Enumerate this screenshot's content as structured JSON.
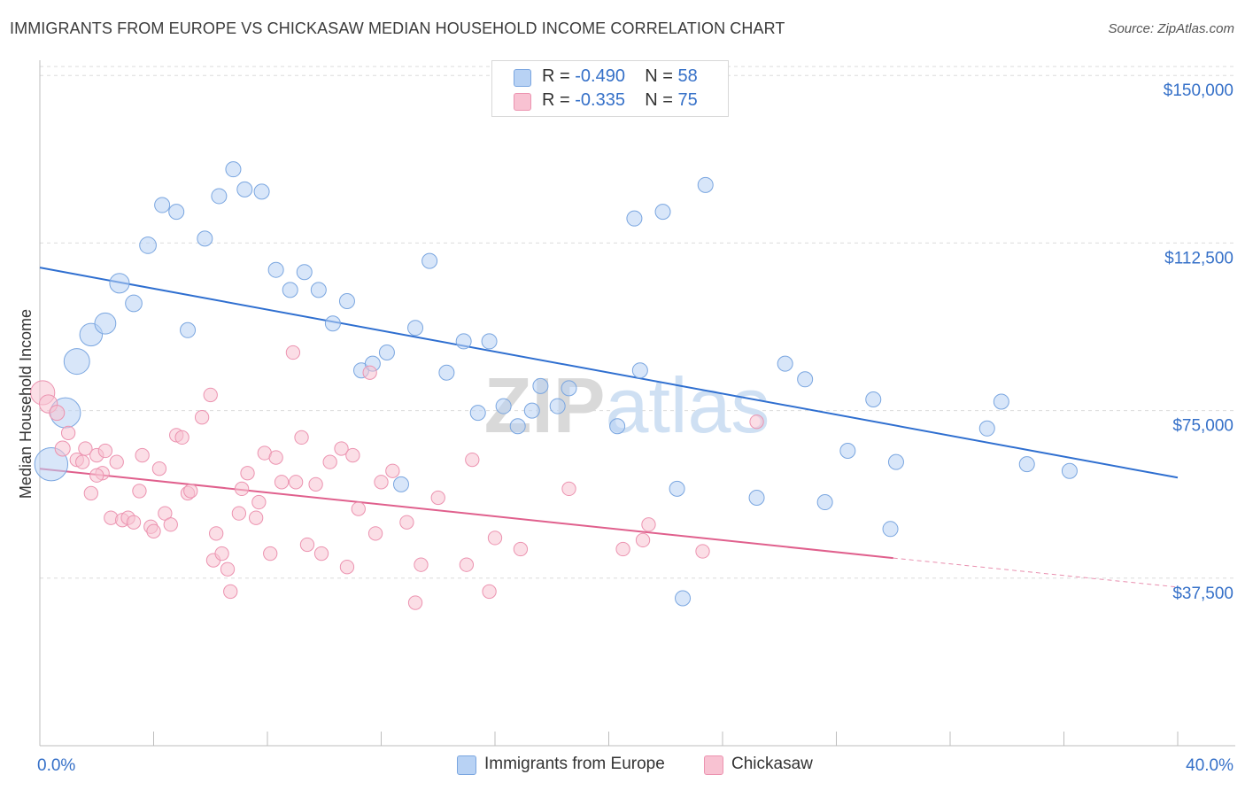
{
  "title": "IMMIGRANTS FROM EUROPE VS CHICKASAW MEDIAN HOUSEHOLD INCOME CORRELATION CHART",
  "source": "Source: ZipAtlas.com",
  "watermark": "ZIPatlas",
  "legend": {
    "rows": [
      {
        "r_label": "R =",
        "r_value": "-0.490",
        "n_label": "N =",
        "n_value": "58"
      },
      {
        "r_label": "R =",
        "r_value": "-0.335",
        "n_label": "N =",
        "n_value": "75"
      }
    ]
  },
  "bottom_legend": {
    "europe": "Immigrants from Europe",
    "chickasaw": "Chickasaw"
  },
  "colors": {
    "europe_fill": "#b8d2f4",
    "europe_stroke": "#7aa6e0",
    "europe_line": "#2f6fd0",
    "chickasaw_fill": "#f8c2d2",
    "chickasaw_stroke": "#ec93b0",
    "chickasaw_line": "#e0608d",
    "tick_label": "#3570c8",
    "grid": "#dcdcdc"
  },
  "chart_data": {
    "type": "scatter",
    "title": "IMMIGRANTS FROM EUROPE VS CHICKASAW MEDIAN HOUSEHOLD INCOME CORRELATION CHART",
    "xlabel": "",
    "ylabel": "Median Household Income",
    "xlim": [
      0,
      40
    ],
    "ylim": [
      0,
      155000
    ],
    "x_tick_labels": [
      "0.0%",
      "40.0%"
    ],
    "y_ticks": [
      37500,
      75000,
      112500,
      150000
    ],
    "y_tick_labels": [
      "$37,500",
      "$75,000",
      "$112,500",
      "$150,000"
    ],
    "grid": true,
    "legend_position": "top-center",
    "series": [
      {
        "name": "Immigrants from Europe",
        "r": -0.49,
        "n": 58,
        "trend": {
          "x": [
            0,
            40
          ],
          "y": [
            107000,
            60000
          ]
        },
        "points": [
          {
            "x": 0.4,
            "y": 63000,
            "s": 2.2
          },
          {
            "x": 0.9,
            "y": 74500,
            "s": 2.0
          },
          {
            "x": 1.3,
            "y": 86000,
            "s": 1.7
          },
          {
            "x": 1.8,
            "y": 92000,
            "s": 1.5
          },
          {
            "x": 2.3,
            "y": 94500,
            "s": 1.4
          },
          {
            "x": 2.8,
            "y": 103500,
            "s": 1.3
          },
          {
            "x": 3.3,
            "y": 99000,
            "s": 1.1
          },
          {
            "x": 3.8,
            "y": 112000,
            "s": 1.1
          },
          {
            "x": 4.3,
            "y": 121000,
            "s": 1.0
          },
          {
            "x": 4.8,
            "y": 119500,
            "s": 1.0
          },
          {
            "x": 5.2,
            "y": 93000,
            "s": 1.0
          },
          {
            "x": 5.8,
            "y": 113500,
            "s": 1.0
          },
          {
            "x": 6.3,
            "y": 123000,
            "s": 1.0
          },
          {
            "x": 6.8,
            "y": 129000,
            "s": 1.0
          },
          {
            "x": 7.2,
            "y": 124500,
            "s": 1.0
          },
          {
            "x": 7.8,
            "y": 124000,
            "s": 1.0
          },
          {
            "x": 8.3,
            "y": 106500,
            "s": 1.0
          },
          {
            "x": 8.8,
            "y": 102000,
            "s": 1.0
          },
          {
            "x": 9.3,
            "y": 106000,
            "s": 1.0
          },
          {
            "x": 9.8,
            "y": 102000,
            "s": 1.0
          },
          {
            "x": 10.3,
            "y": 94500,
            "s": 1.0
          },
          {
            "x": 10.8,
            "y": 99500,
            "s": 1.0
          },
          {
            "x": 11.3,
            "y": 84000,
            "s": 1.0
          },
          {
            "x": 11.7,
            "y": 85500,
            "s": 1.0
          },
          {
            "x": 12.2,
            "y": 88000,
            "s": 1.0
          },
          {
            "x": 12.7,
            "y": 58500,
            "s": 1.0
          },
          {
            "x": 13.2,
            "y": 93500,
            "s": 1.0
          },
          {
            "x": 13.7,
            "y": 108500,
            "s": 1.0
          },
          {
            "x": 14.3,
            "y": 83500,
            "s": 1.0
          },
          {
            "x": 14.9,
            "y": 90500,
            "s": 1.0
          },
          {
            "x": 15.4,
            "y": 74500,
            "s": 1.0
          },
          {
            "x": 15.8,
            "y": 90500,
            "s": 1.0
          },
          {
            "x": 16.3,
            "y": 76000,
            "s": 1.0
          },
          {
            "x": 16.8,
            "y": 71500,
            "s": 1.0
          },
          {
            "x": 17.3,
            "y": 75000,
            "s": 1.0
          },
          {
            "x": 17.6,
            "y": 80500,
            "s": 1.0
          },
          {
            "x": 18.2,
            "y": 76000,
            "s": 1.0
          },
          {
            "x": 18.6,
            "y": 80000,
            "s": 1.0
          },
          {
            "x": 20.3,
            "y": 71500,
            "s": 1.0
          },
          {
            "x": 20.9,
            "y": 118000,
            "s": 1.0
          },
          {
            "x": 21.1,
            "y": 84000,
            "s": 1.0
          },
          {
            "x": 21.9,
            "y": 119500,
            "s": 1.0
          },
          {
            "x": 22.4,
            "y": 57500,
            "s": 1.0
          },
          {
            "x": 22.6,
            "y": 33000,
            "s": 1.0
          },
          {
            "x": 23.4,
            "y": 125500,
            "s": 1.0
          },
          {
            "x": 25.2,
            "y": 55500,
            "s": 1.0
          },
          {
            "x": 26.2,
            "y": 85500,
            "s": 1.0
          },
          {
            "x": 26.9,
            "y": 82000,
            "s": 1.0
          },
          {
            "x": 27.6,
            "y": 54500,
            "s": 1.0
          },
          {
            "x": 28.4,
            "y": 66000,
            "s": 1.0
          },
          {
            "x": 29.3,
            "y": 77500,
            "s": 1.0
          },
          {
            "x": 29.9,
            "y": 48500,
            "s": 1.0
          },
          {
            "x": 30.1,
            "y": 63500,
            "s": 1.0
          },
          {
            "x": 33.3,
            "y": 71000,
            "s": 1.0
          },
          {
            "x": 33.8,
            "y": 77000,
            "s": 1.0
          },
          {
            "x": 34.7,
            "y": 63000,
            "s": 1.0
          },
          {
            "x": 36.2,
            "y": 61500,
            "s": 1.0
          },
          {
            "x": 19.7,
            "y": 76500,
            "s": 0.0
          }
        ]
      },
      {
        "name": "Chickasaw",
        "r": -0.335,
        "n": 75,
        "trend": {
          "x": [
            0,
            30
          ],
          "y": [
            62000,
            42000
          ],
          "dashed_to": {
            "x": 40,
            "y": 35500
          }
        },
        "points": [
          {
            "x": 0.1,
            "y": 79000,
            "s": 1.6
          },
          {
            "x": 0.3,
            "y": 76500,
            "s": 1.2
          },
          {
            "x": 0.6,
            "y": 74500,
            "s": 1.0
          },
          {
            "x": 0.8,
            "y": 66500,
            "s": 1.0
          },
          {
            "x": 1.0,
            "y": 70000,
            "s": 0.9
          },
          {
            "x": 1.3,
            "y": 64000,
            "s": 0.9
          },
          {
            "x": 1.5,
            "y": 63500,
            "s": 0.9
          },
          {
            "x": 1.6,
            "y": 66500,
            "s": 0.9
          },
          {
            "x": 1.8,
            "y": 56500,
            "s": 0.9
          },
          {
            "x": 2.0,
            "y": 65000,
            "s": 0.9
          },
          {
            "x": 2.2,
            "y": 61000,
            "s": 0.9
          },
          {
            "x": 2.3,
            "y": 66000,
            "s": 0.9
          },
          {
            "x": 2.5,
            "y": 51000,
            "s": 0.9
          },
          {
            "x": 2.7,
            "y": 63500,
            "s": 0.9
          },
          {
            "x": 2.9,
            "y": 50500,
            "s": 0.9
          },
          {
            "x": 3.1,
            "y": 51000,
            "s": 0.9
          },
          {
            "x": 3.3,
            "y": 50000,
            "s": 0.9
          },
          {
            "x": 3.5,
            "y": 57000,
            "s": 0.9
          },
          {
            "x": 3.6,
            "y": 65000,
            "s": 0.9
          },
          {
            "x": 3.9,
            "y": 49000,
            "s": 0.9
          },
          {
            "x": 4.0,
            "y": 48000,
            "s": 0.9
          },
          {
            "x": 4.2,
            "y": 62000,
            "s": 0.9
          },
          {
            "x": 4.4,
            "y": 52000,
            "s": 0.9
          },
          {
            "x": 4.6,
            "y": 49500,
            "s": 0.9
          },
          {
            "x": 4.8,
            "y": 69500,
            "s": 0.9
          },
          {
            "x": 5.0,
            "y": 69000,
            "s": 0.9
          },
          {
            "x": 5.2,
            "y": 56500,
            "s": 0.9
          },
          {
            "x": 5.3,
            "y": 57000,
            "s": 0.9
          },
          {
            "x": 5.7,
            "y": 73500,
            "s": 0.9
          },
          {
            "x": 6.0,
            "y": 78500,
            "s": 0.9
          },
          {
            "x": 6.1,
            "y": 41500,
            "s": 0.9
          },
          {
            "x": 6.2,
            "y": 47500,
            "s": 0.9
          },
          {
            "x": 6.4,
            "y": 43000,
            "s": 0.9
          },
          {
            "x": 6.6,
            "y": 39500,
            "s": 0.9
          },
          {
            "x": 6.7,
            "y": 34500,
            "s": 0.9
          },
          {
            "x": 7.0,
            "y": 52000,
            "s": 0.9
          },
          {
            "x": 7.1,
            "y": 57500,
            "s": 0.9
          },
          {
            "x": 7.3,
            "y": 61000,
            "s": 0.9
          },
          {
            "x": 7.6,
            "y": 51000,
            "s": 0.9
          },
          {
            "x": 7.7,
            "y": 54500,
            "s": 0.9
          },
          {
            "x": 7.9,
            "y": 65500,
            "s": 0.9
          },
          {
            "x": 8.1,
            "y": 43000,
            "s": 0.9
          },
          {
            "x": 8.3,
            "y": 64500,
            "s": 0.9
          },
          {
            "x": 8.5,
            "y": 59000,
            "s": 0.9
          },
          {
            "x": 8.9,
            "y": 88000,
            "s": 0.9
          },
          {
            "x": 9.0,
            "y": 59000,
            "s": 0.9
          },
          {
            "x": 9.2,
            "y": 69000,
            "s": 0.9
          },
          {
            "x": 9.4,
            "y": 45000,
            "s": 0.9
          },
          {
            "x": 9.7,
            "y": 58500,
            "s": 0.9
          },
          {
            "x": 9.9,
            "y": 43000,
            "s": 0.9
          },
          {
            "x": 10.2,
            "y": 63500,
            "s": 0.9
          },
          {
            "x": 10.6,
            "y": 66500,
            "s": 0.9
          },
          {
            "x": 10.8,
            "y": 40000,
            "s": 0.9
          },
          {
            "x": 11.0,
            "y": 65000,
            "s": 0.9
          },
          {
            "x": 11.2,
            "y": 53000,
            "s": 0.9
          },
          {
            "x": 11.6,
            "y": 83500,
            "s": 0.9
          },
          {
            "x": 11.8,
            "y": 47500,
            "s": 0.9
          },
          {
            "x": 12.0,
            "y": 59000,
            "s": 0.9
          },
          {
            "x": 12.4,
            "y": 61500,
            "s": 0.9
          },
          {
            "x": 12.9,
            "y": 50000,
            "s": 0.9
          },
          {
            "x": 13.2,
            "y": 32000,
            "s": 0.9
          },
          {
            "x": 13.4,
            "y": 40500,
            "s": 0.9
          },
          {
            "x": 14.0,
            "y": 55500,
            "s": 0.9
          },
          {
            "x": 15.0,
            "y": 40500,
            "s": 0.9
          },
          {
            "x": 15.2,
            "y": 64000,
            "s": 0.9
          },
          {
            "x": 15.8,
            "y": 34500,
            "s": 0.9
          },
          {
            "x": 16.0,
            "y": 46500,
            "s": 0.9
          },
          {
            "x": 16.9,
            "y": 44000,
            "s": 0.9
          },
          {
            "x": 18.6,
            "y": 57500,
            "s": 0.9
          },
          {
            "x": 20.5,
            "y": 44000,
            "s": 0.9
          },
          {
            "x": 21.2,
            "y": 46000,
            "s": 0.9
          },
          {
            "x": 21.4,
            "y": 49500,
            "s": 0.9
          },
          {
            "x": 23.3,
            "y": 43500,
            "s": 0.9
          },
          {
            "x": 25.2,
            "y": 72500,
            "s": 0.9
          },
          {
            "x": 2.0,
            "y": 60500,
            "s": 0.9
          }
        ]
      }
    ]
  }
}
